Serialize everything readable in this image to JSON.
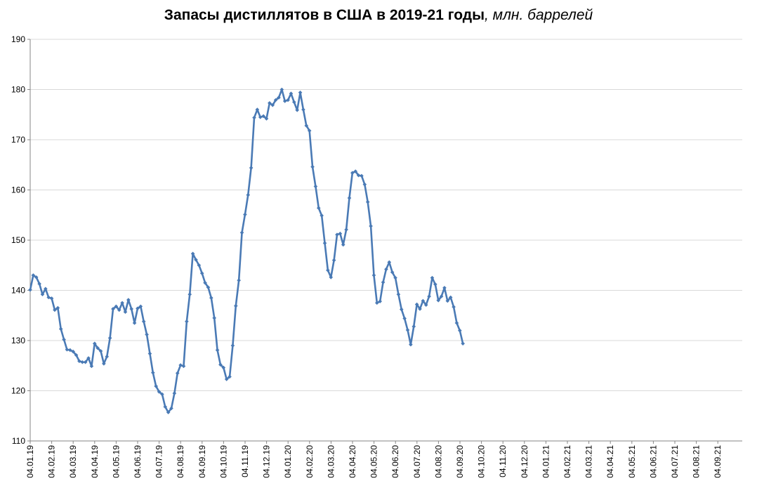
{
  "chart_data": {
    "type": "line",
    "title": "Запасы дистиллятов в США в 2019-21 годы",
    "title_unit": ", млн. баррелей",
    "xlabel": "",
    "ylabel": "",
    "ylim": [
      110,
      190
    ],
    "yticks": [
      110,
      120,
      130,
      140,
      150,
      160,
      170,
      180,
      190
    ],
    "grid": "horizontal",
    "legend": "none",
    "x_tick_labels": [
      "04.01.19",
      "04.02.19",
      "04.03.19",
      "04.04.19",
      "04.05.19",
      "04.06.19",
      "04.07.19",
      "04.08.19",
      "04.09.19",
      "04.10.19",
      "04.11.19",
      "04.12.19",
      "04.01.20",
      "04.02.20",
      "04.03.20",
      "04.04.20",
      "04.05.20",
      "04.06.20",
      "04.07.20",
      "04.08.20",
      "04.09.20",
      "04.10.20",
      "04.11.20",
      "04.12.20",
      "04.01.21",
      "04.02.21",
      "04.03.21",
      "04.04.21",
      "04.05.21",
      "04.06.21",
      "04.07.21",
      "04.08.21",
      "04.09.21"
    ],
    "line_color": "#4a7ab5",
    "series": [
      {
        "values": [
          140.1,
          143.0,
          142.6,
          141.3,
          139.2,
          140.3,
          138.6,
          138.4,
          136.1,
          136.5,
          132.3,
          130.2,
          128.2,
          128.1,
          127.8,
          127.1,
          125.9,
          125.7,
          125.7,
          126.5,
          124.9,
          129.4,
          128.5,
          127.9,
          125.4,
          126.8,
          130.5,
          136.3,
          136.8,
          136.1,
          137.5,
          135.7,
          138.1,
          136.3,
          133.5,
          136.4,
          136.8,
          133.8,
          131.2,
          127.4,
          123.6,
          120.9,
          119.8,
          119.3,
          116.8,
          115.7,
          116.5,
          119.5,
          123.5,
          125.1,
          124.9,
          133.8,
          139.2,
          147.3,
          146.1,
          145.0,
          143.4,
          141.5,
          140.6,
          138.5,
          134.5,
          128.1,
          125.2,
          124.6,
          122.3,
          122.8,
          129.0,
          136.9,
          142.0,
          151.5,
          155.1,
          159.0,
          164.4,
          174.4,
          176.0,
          174.5,
          174.7,
          174.2,
          177.3,
          176.9,
          177.9,
          178.4,
          180.0,
          177.7,
          177.9,
          179.2,
          177.5,
          175.9,
          179.4,
          176.0,
          172.8,
          171.8,
          164.6,
          160.7,
          156.4,
          154.9,
          149.4,
          144.0,
          142.6,
          146.0,
          151.1,
          151.3,
          149.1,
          152.1,
          158.4,
          163.4,
          163.7,
          162.9,
          162.8,
          161.1,
          157.6,
          152.8,
          143.0,
          137.5,
          137.8,
          141.6,
          144.2,
          145.6,
          143.6,
          142.5,
          139.2,
          136.2,
          134.4,
          132.1,
          129.2,
          132.8,
          137.2,
          136.3,
          137.9,
          137.1,
          138.8,
          142.5,
          141.2,
          138.0,
          138.8,
          140.5,
          137.9,
          138.6,
          136.7,
          133.5,
          132.0,
          129.4
        ]
      }
    ]
  }
}
